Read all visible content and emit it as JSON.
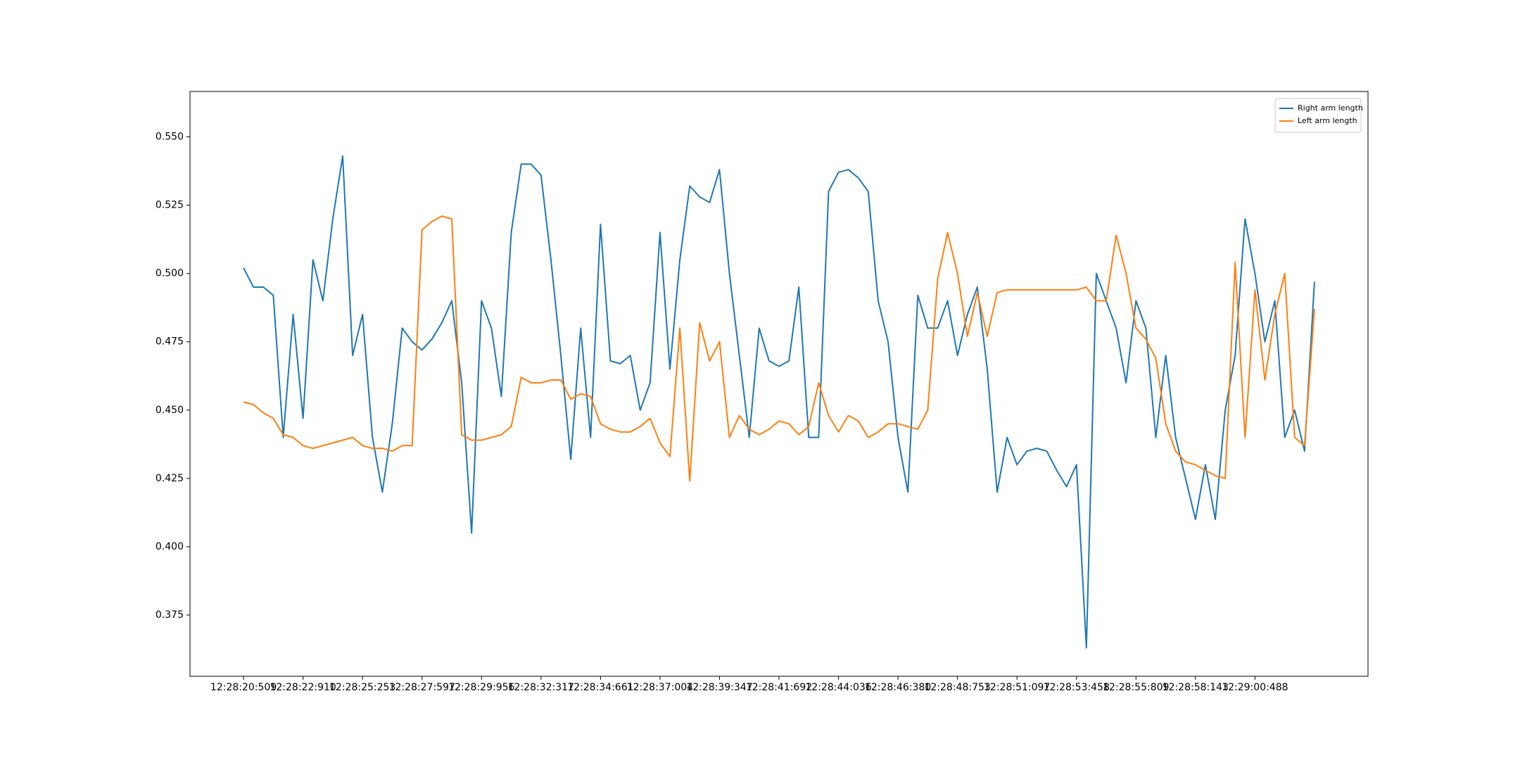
{
  "chart_data": {
    "type": "line",
    "legend": "upper right",
    "grid": false,
    "categories": [
      "12:28:20:509",
      null,
      null,
      null,
      null,
      null,
      "12:28:22:910",
      null,
      null,
      null,
      null,
      null,
      "12:28:25:253",
      null,
      null,
      null,
      null,
      null,
      "12:28:27:597",
      null,
      null,
      null,
      null,
      null,
      "12:28:29:956",
      null,
      null,
      null,
      null,
      null,
      "12:28:32:317",
      null,
      null,
      null,
      null,
      null,
      "12:28:34:661",
      null,
      null,
      null,
      null,
      null,
      "12:28:37:004",
      null,
      null,
      null,
      null,
      null,
      "12:28:39:347",
      null,
      null,
      null,
      null,
      null,
      "12:28:41:692",
      null,
      null,
      null,
      null,
      null,
      "12:28:44:036",
      null,
      null,
      null,
      null,
      null,
      "12:28:46:380",
      null,
      null,
      null,
      null,
      null,
      "12:28:48:753",
      null,
      null,
      null,
      null,
      null,
      "12:28:51:097",
      null,
      null,
      null,
      null,
      null,
      "12:28:53:458",
      null,
      null,
      null,
      null,
      null,
      "12:28:55:809",
      null,
      null,
      null,
      null,
      null,
      "12:28:58:143",
      null,
      null,
      null,
      null,
      null,
      "12:29:00:488",
      null,
      null,
      null,
      null,
      null,
      null
    ],
    "series": [
      {
        "name": "Right arm length",
        "color": "#1f77b4",
        "values": [
          0.502,
          0.495,
          0.495,
          0.492,
          0.44,
          0.485,
          0.447,
          0.505,
          0.49,
          0.52,
          0.543,
          0.47,
          0.485,
          0.44,
          0.42,
          0.445,
          0.48,
          0.475,
          0.472,
          0.476,
          0.482,
          0.49,
          0.46,
          0.405,
          0.49,
          0.48,
          0.455,
          0.515,
          0.54,
          0.54,
          0.536,
          0.505,
          0.47,
          0.432,
          0.48,
          0.44,
          0.518,
          0.468,
          0.467,
          0.47,
          0.45,
          0.46,
          0.515,
          0.465,
          0.505,
          0.532,
          0.528,
          0.526,
          0.538,
          0.5,
          0.47,
          0.44,
          0.48,
          0.468,
          0.466,
          0.468,
          0.495,
          0.44,
          0.44,
          0.53,
          0.537,
          0.538,
          0.535,
          0.53,
          0.49,
          0.475,
          0.44,
          0.42,
          0.492,
          0.48,
          0.48,
          0.49,
          0.47,
          0.485,
          0.495,
          0.465,
          0.42,
          0.44,
          0.43,
          0.435,
          0.436,
          0.435,
          0.428,
          0.422,
          0.43,
          0.363,
          0.5,
          0.49,
          0.48,
          0.46,
          0.49,
          0.48,
          0.44,
          0.47,
          0.44,
          0.425,
          0.41,
          0.43,
          0.41,
          0.45,
          0.47,
          0.52,
          0.5,
          0.475,
          0.49,
          0.44,
          0.45,
          0.435,
          0.497
        ]
      },
      {
        "name": "Left arm length",
        "color": "#ff7f0e",
        "values": [
          0.453,
          0.452,
          0.449,
          0.447,
          0.441,
          0.44,
          0.437,
          0.436,
          0.437,
          0.438,
          0.439,
          0.44,
          0.437,
          0.436,
          0.436,
          0.435,
          0.437,
          0.437,
          0.516,
          0.519,
          0.521,
          0.52,
          0.441,
          0.439,
          0.439,
          0.44,
          0.441,
          0.444,
          0.462,
          0.46,
          0.46,
          0.461,
          0.461,
          0.454,
          0.456,
          0.455,
          0.445,
          0.443,
          0.442,
          0.442,
          0.444,
          0.447,
          0.438,
          0.433,
          0.48,
          0.424,
          0.482,
          0.468,
          0.475,
          0.44,
          0.448,
          0.443,
          0.441,
          0.443,
          0.446,
          0.445,
          0.441,
          0.444,
          0.46,
          0.448,
          0.442,
          0.448,
          0.446,
          0.44,
          0.442,
          0.445,
          0.445,
          0.444,
          0.443,
          0.45,
          0.498,
          0.515,
          0.5,
          0.477,
          0.493,
          0.477,
          0.493,
          0.494,
          0.494,
          0.494,
          0.494,
          0.494,
          0.494,
          0.494,
          0.494,
          0.495,
          0.49,
          0.49,
          0.514,
          0.5,
          0.48,
          0.476,
          0.469,
          0.445,
          0.435,
          0.431,
          0.43,
          0.428,
          0.426,
          0.425,
          0.504,
          0.44,
          0.494,
          0.461,
          0.485,
          0.5,
          0.44,
          0.437,
          0.487
        ]
      }
    ],
    "ylim": [
      0.3526,
      0.5666
    ],
    "yticks": [
      0.375,
      {
        "value": 0.4,
        "label": "0.400"
      },
      0.425,
      {
        "value": 0.45,
        "label": "0.450"
      },
      0.475,
      {
        "value": 0.5,
        "label": "0.500"
      },
      0.525,
      {
        "value": 0.55,
        "label": "0.550"
      }
    ]
  }
}
